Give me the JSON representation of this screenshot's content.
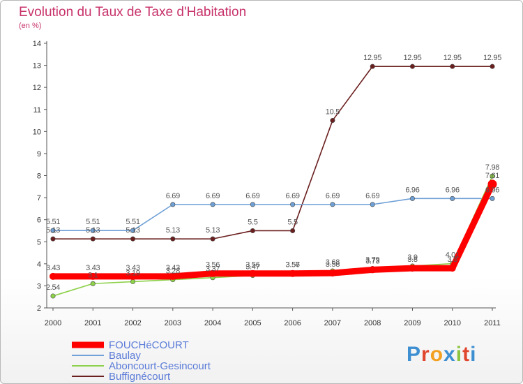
{
  "title": "Evolution du Taux de Taxe d'Habitation",
  "subtitle": "(en %)",
  "brand": "Proxiti",
  "chart_data": {
    "type": "line",
    "title": "Evolution du Taux de Taxe d'Habitation",
    "subtitle": "(en %)",
    "xlabel": "",
    "ylabel": "",
    "x": [
      "2000",
      "2001",
      "2002",
      "2003",
      "2004",
      "2005",
      "2006",
      "2007",
      "2008",
      "2009",
      "2010",
      "2011"
    ],
    "yticks": [
      "2",
      "3",
      "4",
      "5",
      "6",
      "7",
      "8",
      "9",
      "10",
      "11",
      "12",
      "13",
      "14"
    ],
    "ylim": [
      2,
      14
    ],
    "grid": false,
    "legend": "bottom-left",
    "series": [
      {
        "name": "FOUCHéCOURT",
        "color": "#ff0000",
        "values": [
          3.43,
          3.43,
          3.43,
          3.43,
          3.56,
          3.56,
          3.56,
          3.58,
          3.73,
          3.8,
          3.8,
          7.61
        ],
        "labels": [
          "3.43",
          "3.43",
          "3.43",
          "3.43",
          "3.56",
          "3.56",
          "3.56",
          "3.58",
          "3.73",
          "3.8",
          "3.8",
          "7.61"
        ]
      },
      {
        "name": "Baulay",
        "color": "#6fa0d6",
        "values": [
          5.51,
          5.51,
          5.51,
          6.69,
          6.69,
          6.69,
          6.69,
          6.69,
          6.69,
          6.96,
          6.96,
          6.96
        ],
        "labels": [
          "5.51",
          "5.51",
          "5.51",
          "6.69",
          "6.69",
          "6.69",
          "6.69",
          "6.69",
          "6.69",
          "6.96",
          "6.96",
          "6.96"
        ]
      },
      {
        "name": "Aboncourt-Gesincourt",
        "color": "#8ed14b",
        "values": [
          2.54,
          3.1,
          3.19,
          3.28,
          3.37,
          3.47,
          3.57,
          3.68,
          3.79,
          3.9,
          4.01,
          7.98
        ],
        "labels": [
          "2.54",
          "3.1",
          "3.19",
          "3.28",
          "3.37",
          "3.47",
          "3.57",
          "3.68",
          "3.79",
          "3.9",
          "4.01",
          "7.98"
        ]
      },
      {
        "name": "Buffignécourt",
        "color": "#6b1f1f",
        "values": [
          5.13,
          5.13,
          5.13,
          5.13,
          5.13,
          5.5,
          5.5,
          10.5,
          12.95,
          12.95,
          12.95,
          12.95
        ],
        "labels": [
          "5.13",
          "5.13",
          "5.13",
          "5.13",
          "5.13",
          "5.5",
          "5.5",
          "10.5",
          "12.95",
          "12.95",
          "12.95",
          "12.95"
        ]
      }
    ]
  }
}
